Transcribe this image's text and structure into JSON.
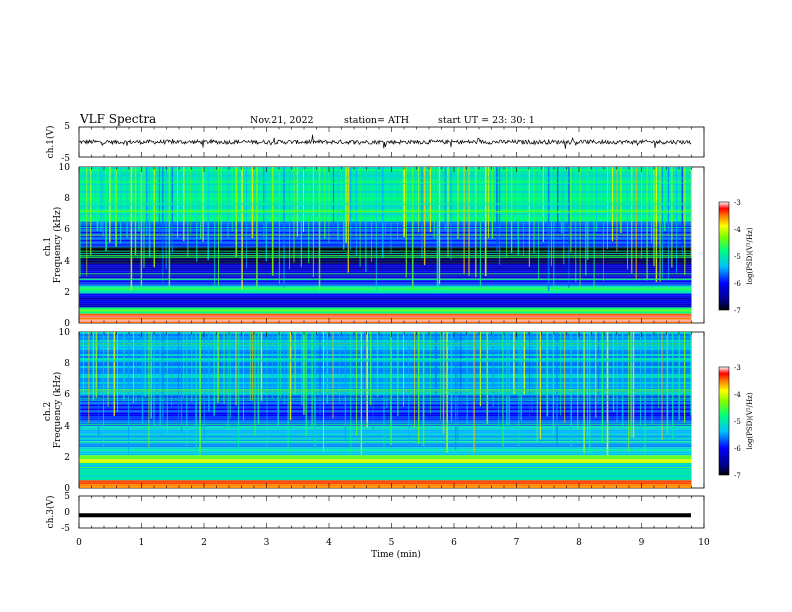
{
  "header": {
    "title": "VLF  Spectra",
    "date": "Nov.21, 2022",
    "station": "station= ATH",
    "start": "start  UT  =    23: 30: 1"
  },
  "chart_data": [
    {
      "type": "line",
      "panel": "ch1-waveform",
      "ylabel": "ch.1(V)",
      "ylim": [
        -5,
        5
      ],
      "yticks": [
        "5",
        "-5"
      ],
      "xlim": [
        0,
        10
      ],
      "x_extent_min": 9.8,
      "approx_level": 0.0,
      "series_color": "#000000"
    },
    {
      "type": "heatmap",
      "panel": "ch1-spectrogram",
      "ylabel": "ch.1\nFrequency  (kHz)",
      "ylim": [
        0,
        10
      ],
      "yticks": [
        "10",
        "8",
        "6",
        "4",
        "2",
        "0"
      ],
      "xlim": [
        0,
        10
      ],
      "x_extent_min": 9.8,
      "colorbar": {
        "label": "log(PSD)(V²/Hz)",
        "range": [
          -7,
          -3
        ],
        "ticks": [
          "-3",
          "-4",
          "-5",
          "-6",
          "-7"
        ]
      },
      "bands": [
        {
          "f": [
            0,
            0.6
          ],
          "level": -3.3
        },
        {
          "f": [
            0.6,
            1.0
          ],
          "level": -4.6
        },
        {
          "f": [
            1.0,
            1.9
          ],
          "level": -6.2
        },
        {
          "f": [
            1.9,
            2.4
          ],
          "level": -4.9
        },
        {
          "f": [
            2.4,
            3.0
          ],
          "level": -6.0
        },
        {
          "f": [
            3.0,
            3.8
          ],
          "level": -6.3
        },
        {
          "f": [
            3.8,
            4.9
          ],
          "level": -6.9
        },
        {
          "f": [
            4.9,
            6.5
          ],
          "level": -5.8
        },
        {
          "f": [
            6.5,
            10.0
          ],
          "level": -5.0
        }
      ]
    },
    {
      "type": "heatmap",
      "panel": "ch2-spectrogram",
      "ylabel": "ch.2\nFrequency  (kHz)",
      "ylim": [
        0,
        10
      ],
      "yticks": [
        "10",
        "8",
        "6",
        "4",
        "2",
        "0"
      ],
      "xlim": [
        0,
        10
      ],
      "x_extent_min": 9.8,
      "colorbar": {
        "label": "log(PSD)(V²/Hz)",
        "range": [
          -7,
          -3
        ],
        "ticks": [
          "-3",
          "-4",
          "-5",
          "-6",
          "-7"
        ]
      },
      "bands": [
        {
          "f": [
            0,
            0.5
          ],
          "level": -3.6
        },
        {
          "f": [
            0.5,
            1.6
          ],
          "level": -5.1
        },
        {
          "f": [
            1.6,
            2.1
          ],
          "level": -4.2
        },
        {
          "f": [
            2.1,
            3.0
          ],
          "level": -5.4
        },
        {
          "f": [
            3.0,
            4.0
          ],
          "level": -5.3
        },
        {
          "f": [
            4.0,
            6.0
          ],
          "level": -5.8
        },
        {
          "f": [
            6.0,
            10.0
          ],
          "level": -5.4
        }
      ]
    },
    {
      "type": "line",
      "panel": "ch3-waveform",
      "ylabel": "ch.3(V)",
      "ylim": [
        -5,
        5
      ],
      "yticks": [
        "5",
        "0",
        "-5"
      ],
      "xlim": [
        0,
        10
      ],
      "x_extent_min": 9.8,
      "approx_level": -1.0,
      "series_color": "#000000"
    }
  ],
  "xaxis": {
    "label": "Time  (min)",
    "ticks": [
      "0",
      "1",
      "2",
      "3",
      "4",
      "5",
      "6",
      "7",
      "8",
      "9",
      "10"
    ]
  }
}
